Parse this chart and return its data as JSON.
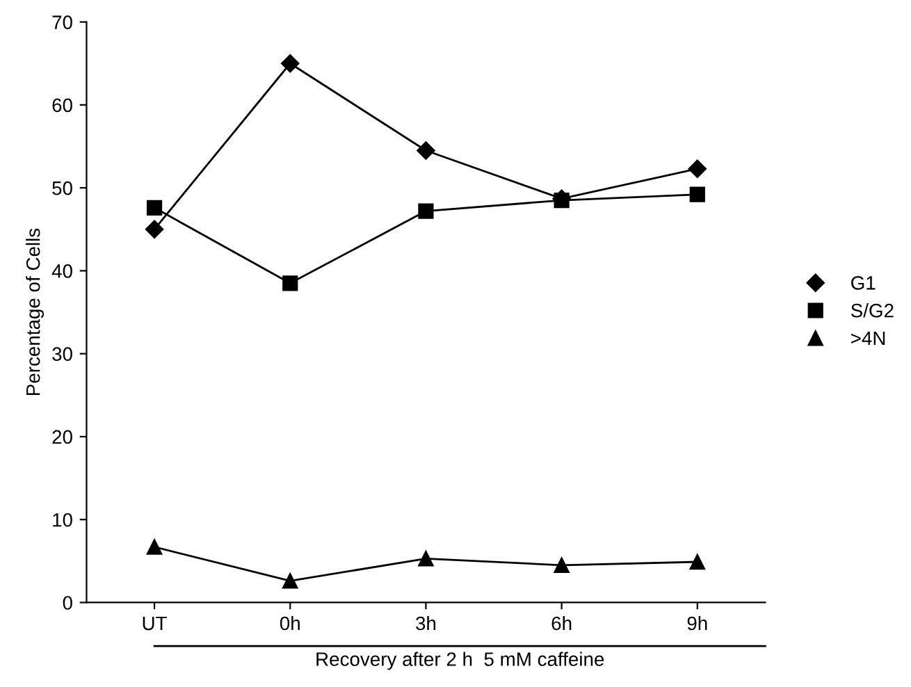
{
  "chart_data": {
    "type": "line",
    "ylabel": "Percentage of Cells",
    "xlabel": "Recovery after 2 h  5 mM caffeine",
    "categories": [
      "UT",
      "0h",
      "3h",
      "6h",
      "9h"
    ],
    "series": [
      {
        "name": "G1",
        "color": "#000000",
        "marker": "diamond",
        "values": [
          45,
          65,
          54.5,
          48.7,
          52.3
        ]
      },
      {
        "name": "S/G2",
        "color": "#000000",
        "marker": "square",
        "values": [
          47.6,
          38.5,
          47.2,
          48.5,
          49.2
        ]
      },
      {
        "name": ">4N",
        "color": "#000000",
        "marker": "triangle",
        "values": [
          6.7,
          2.6,
          5.3,
          4.5,
          4.9
        ]
      }
    ],
    "ylim": [
      0,
      70
    ],
    "yticks": [
      0,
      10,
      20,
      30,
      40,
      50,
      60,
      70
    ],
    "grid": false,
    "legend": "right",
    "line_style": "solid"
  }
}
